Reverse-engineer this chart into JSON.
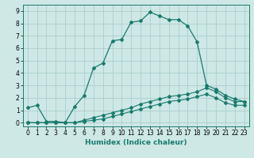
{
  "xlabel": "Humidex (Indice chaleur)",
  "ylabel": "",
  "xlim": [
    -0.5,
    23.5
  ],
  "ylim": [
    -0.3,
    9.5
  ],
  "xticks": [
    0,
    1,
    2,
    3,
    4,
    5,
    6,
    7,
    8,
    9,
    10,
    11,
    12,
    13,
    14,
    15,
    16,
    17,
    18,
    19,
    20,
    21,
    22,
    23
  ],
  "yticks": [
    0,
    1,
    2,
    3,
    4,
    5,
    6,
    7,
    8,
    9
  ],
  "bg_color": "#cde8e5",
  "grid_color": "#aacece",
  "line_color": "#1a7a6e",
  "line1_x": [
    0,
    1,
    2,
    3,
    4,
    5,
    6,
    7,
    8,
    9,
    10,
    11,
    12,
    13,
    14,
    15,
    16,
    17,
    18,
    19,
    20,
    21,
    22,
    23
  ],
  "line1_y": [
    1.2,
    1.4,
    0.1,
    0.1,
    0.0,
    1.3,
    2.2,
    4.4,
    4.8,
    6.6,
    6.7,
    8.1,
    8.2,
    8.9,
    8.6,
    8.3,
    8.3,
    7.8,
    6.5,
    3.0,
    2.7,
    2.2,
    1.9,
    1.7
  ],
  "line2_x": [
    0,
    1,
    2,
    3,
    4,
    5,
    6,
    7,
    8,
    9,
    10,
    11,
    12,
    13,
    14,
    15,
    16,
    17,
    18,
    19,
    20,
    21,
    22,
    23
  ],
  "line2_y": [
    0.0,
    0.0,
    0.0,
    0.0,
    0.0,
    0.0,
    0.2,
    0.4,
    0.6,
    0.8,
    1.0,
    1.2,
    1.5,
    1.7,
    1.9,
    2.1,
    2.2,
    2.3,
    2.5,
    2.8,
    2.5,
    2.0,
    1.7,
    1.7
  ],
  "line3_x": [
    0,
    1,
    2,
    3,
    4,
    5,
    6,
    7,
    8,
    9,
    10,
    11,
    12,
    13,
    14,
    15,
    16,
    17,
    18,
    19,
    20,
    21,
    22,
    23
  ],
  "line3_y": [
    0.0,
    0.0,
    0.0,
    0.0,
    0.0,
    0.0,
    0.1,
    0.2,
    0.3,
    0.5,
    0.7,
    0.9,
    1.1,
    1.3,
    1.5,
    1.7,
    1.8,
    1.9,
    2.1,
    2.3,
    2.0,
    1.6,
    1.4,
    1.4
  ],
  "tick_fontsize": 5.5,
  "xlabel_fontsize": 6.5
}
